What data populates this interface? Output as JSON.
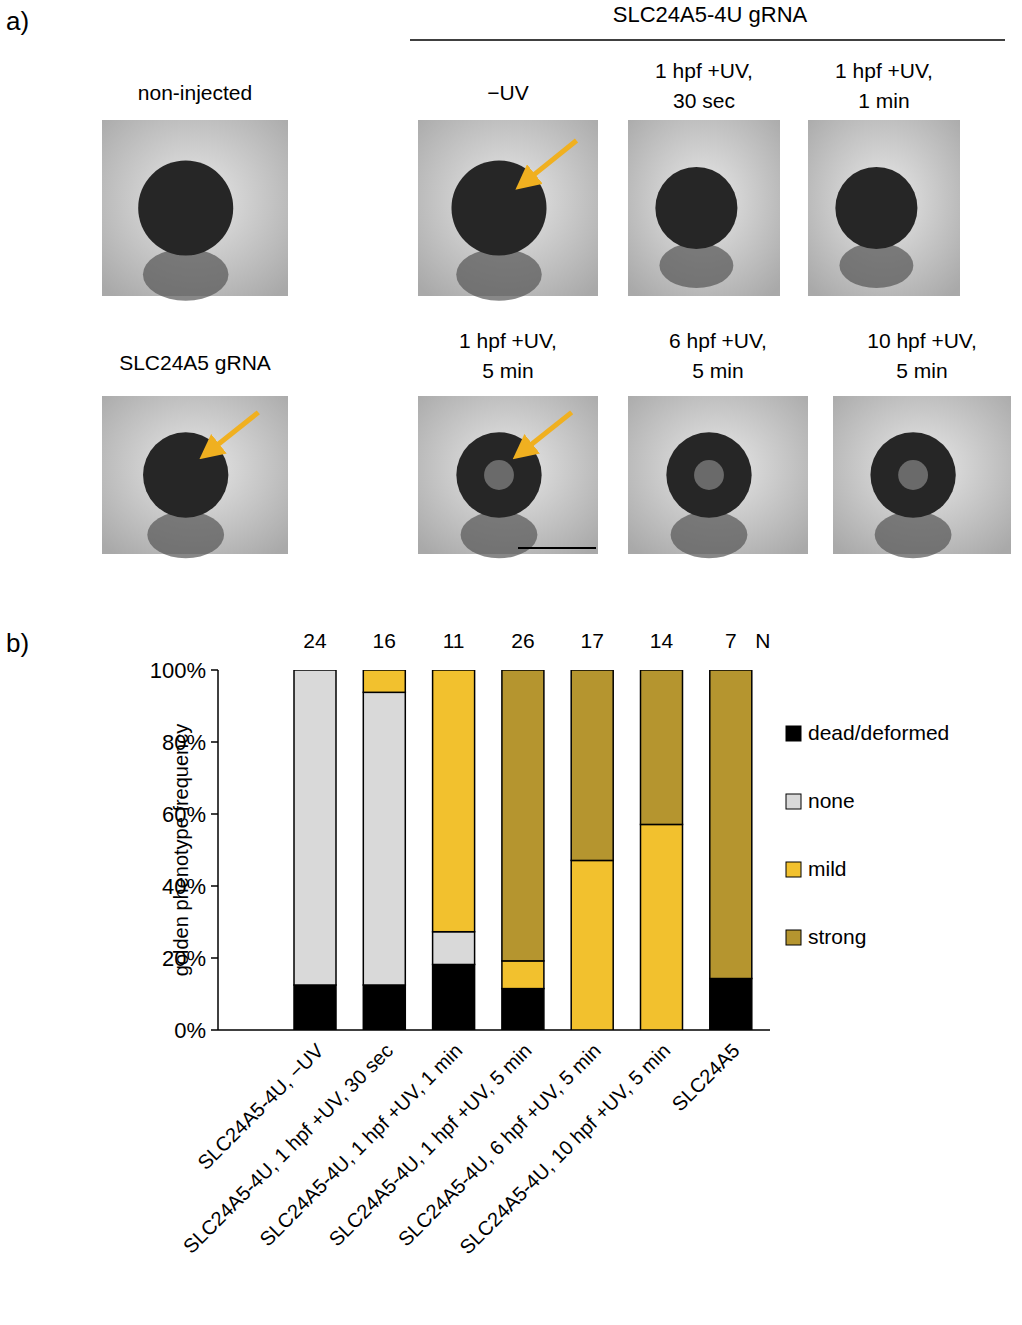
{
  "panel_a": {
    "label": "a)",
    "header": "SLC24A5-4U gRNA",
    "images": [
      {
        "lines": [
          "non-injected"
        ]
      },
      {
        "lines": [
          "−UV"
        ]
      },
      {
        "lines": [
          "1 hpf +UV,",
          "30 sec"
        ]
      },
      {
        "lines": [
          "1 hpf +UV,",
          "1 min"
        ]
      },
      {
        "lines": [
          "SLC24A5 gRNA"
        ]
      },
      {
        "lines": [
          "1 hpf +UV,",
          "5 min"
        ]
      },
      {
        "lines": [
          "6 hpf +UV,",
          "5 min"
        ]
      },
      {
        "lines": [
          "10 hpf +UV,",
          "5 min"
        ]
      }
    ]
  },
  "chart_data": {
    "type": "bar",
    "stacked": true,
    "panel_label": "b)",
    "y_label": "golden phenotype frequency",
    "n_label": "N",
    "n": [
      24,
      16,
      11,
      26,
      17,
      14,
      7
    ],
    "categories": [
      "SLC24A5-4U, −UV",
      "SLC24A5-4U, 1 hpf +UV, 30 sec",
      "SLC24A5-4U, 1 hpf +UV, 1 min",
      "SLC24A5-4U, 1 hpf +UV, 5 min",
      "SLC24A5-4U, 6 hpf +UV, 5 min",
      "SLC24A5-4U, 10 hpf +UV, 5 min",
      "SLC24A5"
    ],
    "series": [
      {
        "name": "dead/deformed",
        "color": "#000000",
        "values": [
          12.5,
          12.5,
          18.2,
          11.5,
          0,
          0,
          14.3
        ]
      },
      {
        "name": "none",
        "color": "#d9d9d9",
        "values": [
          87.5,
          81.3,
          9.1,
          0,
          0,
          0,
          0
        ]
      },
      {
        "name": "mild",
        "color": "#f2c12e",
        "values": [
          0,
          6.2,
          72.7,
          7.7,
          47.1,
          57.1,
          0
        ]
      },
      {
        "name": "strong",
        "color": "#b5952f",
        "values": [
          0,
          0,
          0,
          80.8,
          52.9,
          42.9,
          85.7
        ]
      }
    ],
    "ylim": [
      0,
      100
    ],
    "yticks": [
      {
        "value": 0,
        "label": "0%"
      },
      {
        "value": 20,
        "label": "20%"
      },
      {
        "value": 40,
        "label": "40%"
      },
      {
        "value": 60,
        "label": "60%"
      },
      {
        "value": 80,
        "label": "80%"
      },
      {
        "value": 100,
        "label": "100%"
      }
    ],
    "legend": "right"
  }
}
